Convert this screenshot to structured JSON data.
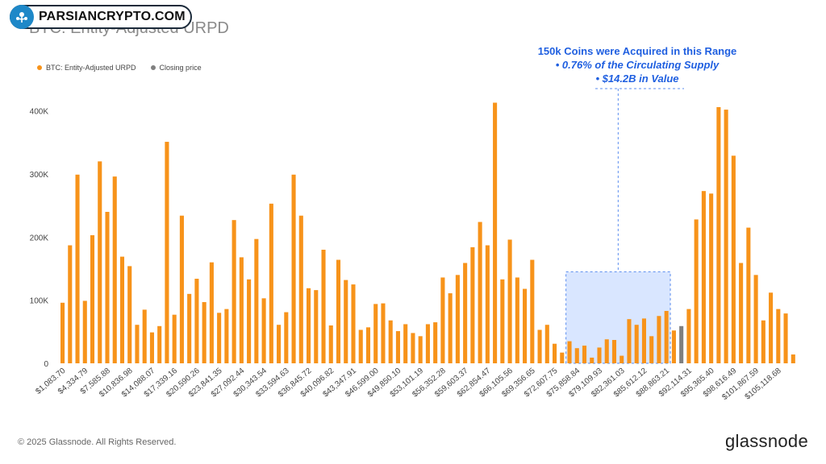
{
  "header": {
    "title": "BTC: Entity-Adjusted URPD",
    "watermark_text": "PARSIANCRYPTO.COM"
  },
  "legend": [
    {
      "label": "BTC: Entity-Adjusted URPD",
      "color": "#f7931a"
    },
    {
      "label": "Closing price",
      "color": "#808080"
    }
  ],
  "annotation": {
    "line1": "150k Coins were Acquired in this Range",
    "line2": "•  0.76% of the Circulating Supply",
    "line3": "•  $14.2B in Value",
    "color": "#1f5fe0"
  },
  "footer": {
    "copyright": "© 2025 Glassnode. All Rights Reserved.",
    "brand": "glassnode"
  },
  "chart_data": {
    "type": "bar",
    "title": "BTC: Entity-Adjusted URPD",
    "xlabel": "",
    "ylabel": "",
    "ylim": [
      0,
      420000
    ],
    "yticks": [
      0,
      100000,
      200000,
      300000,
      400000
    ],
    "ytick_labels": [
      "0",
      "100K",
      "200K",
      "300K",
      "400K"
    ],
    "xtick_labels": [
      "$1,083.70",
      "$4,334.79",
      "$7,585.88",
      "$10,836.98",
      "$14,088.07",
      "$17,339.16",
      "$20,590.26",
      "$23,841.35",
      "$27,092.44",
      "$30,343.54",
      "$33,594.63",
      "$36,845.72",
      "$40,096.82",
      "$43,347.91",
      "$46,599.00",
      "$49,850.10",
      "$53,101.19",
      "$56,352.28",
      "$59,603.37",
      "$62,854.47",
      "$66,105.56",
      "$69,356.65",
      "$72,607.75",
      "$75,858.84",
      "$79,109.93",
      "$82,361.03",
      "$85,612.12",
      "$88,863.21",
      "$92,114.31",
      "$95,365.40",
      "$98,616.49",
      "$101,867.59",
      "$105,118.68"
    ],
    "bar_color": "#f7931a",
    "closing_price_color": "#808080",
    "closing_price_index": 83,
    "highlight_range": {
      "from_index": 68,
      "to_index": 81,
      "ymax": 145000,
      "color": "#cfe0ff"
    },
    "values": [
      96000,
      187000,
      299000,
      99000,
      203000,
      320000,
      240000,
      296000,
      169000,
      154000,
      61000,
      85000,
      49000,
      59000,
      351000,
      77000,
      234000,
      110000,
      134000,
      97000,
      160000,
      80000,
      86000,
      227000,
      168000,
      133000,
      197000,
      103000,
      253000,
      61000,
      81000,
      299000,
      234000,
      119000,
      116000,
      180000,
      60000,
      164000,
      132000,
      125000,
      53000,
      57000,
      94000,
      95000,
      68000,
      51000,
      62000,
      48000,
      43000,
      62000,
      65000,
      136000,
      111000,
      140000,
      159000,
      184000,
      224000,
      187000,
      413000,
      133000,
      196000,
      136000,
      118000,
      164000,
      53000,
      61000,
      31000,
      17000,
      35000,
      24000,
      28000,
      9000,
      25000,
      38000,
      37000,
      12000,
      70000,
      61000,
      71000,
      43000,
      75000,
      83000,
      52000,
      59000,
      86000,
      228000,
      273000,
      269000,
      406000,
      402000,
      329000,
      159000,
      215000,
      140000,
      68000,
      112000,
      86000,
      79000,
      14000
    ]
  }
}
